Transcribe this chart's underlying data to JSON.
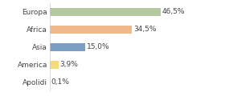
{
  "categories": [
    "Europa",
    "Africa",
    "Asia",
    "America",
    "Apolidi"
  ],
  "values": [
    46.5,
    34.5,
    15.0,
    3.9,
    0.1
  ],
  "labels": [
    "46,5%",
    "34,5%",
    "15,0%",
    "3,9%",
    "0,1%"
  ],
  "bar_colors": [
    "#b5c9a0",
    "#f0b989",
    "#7b9ec5",
    "#f5d97a",
    "#f5d97a"
  ],
  "background_color": "#ffffff",
  "label_fontsize": 6.5,
  "ytick_fontsize": 6.5,
  "bar_height": 0.45,
  "xlim": [
    0,
    62
  ]
}
